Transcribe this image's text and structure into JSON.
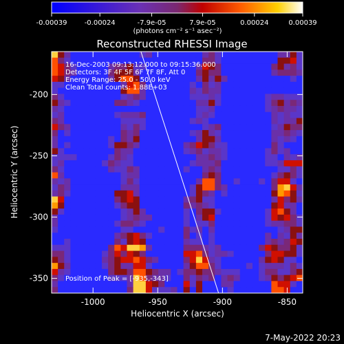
{
  "colorbar": {
    "tick_labels": [
      "-0.00039",
      "-0.00024",
      "-7.9e-05",
      "7.9e-05",
      "0.00024",
      "0.00039"
    ],
    "tick_values": [
      -0.00039,
      -0.00024,
      -7.9e-05,
      7.9e-05,
      0.00024,
      0.00039
    ],
    "range": [
      -0.00039,
      0.00039
    ],
    "units_label": "(photons cm⁻² s⁻¹ asec⁻²)",
    "colors": [
      "#0000ff",
      "#7030b0",
      "#a00000",
      "#ff6000",
      "#ffc000",
      "#ffffff"
    ]
  },
  "chart_data": {
    "type": "heatmap",
    "title": "Reconstructed RHESSI Image",
    "xlabel": "Heliocentric X (arcsec)",
    "ylabel": "Heliocentric Y (arcsec)",
    "xlim": [
      -1032,
      -838
    ],
    "ylim": [
      -362,
      -165
    ],
    "x_ticks": [
      -1000,
      -950,
      -900,
      -850
    ],
    "x_tick_labels": [
      "-1000",
      "-950",
      "-900",
      "-850"
    ],
    "y_ticks": [
      -350,
      -300,
      -250,
      -200
    ],
    "y_tick_labels": [
      "-350",
      "-300",
      "-250",
      "-200"
    ],
    "limb_line": [
      [
        -963,
        -165
      ],
      [
        -903,
        -362
      ]
    ],
    "annotations": [
      "16-Dec-2003 09:13:12.000 to 09:15:36.000",
      "Detectors: 3F 4F 5F 6F 7F 8F, Att 0",
      "Energy Range: 25.0 - 50.0 keV",
      "Clean    Total counts: 1.88E+03",
      "Position of Peak = [-935,-343]"
    ],
    "peak": [
      -935,
      -343
    ]
  },
  "footer": {
    "timestamp": "7-May-2022 20:23"
  }
}
